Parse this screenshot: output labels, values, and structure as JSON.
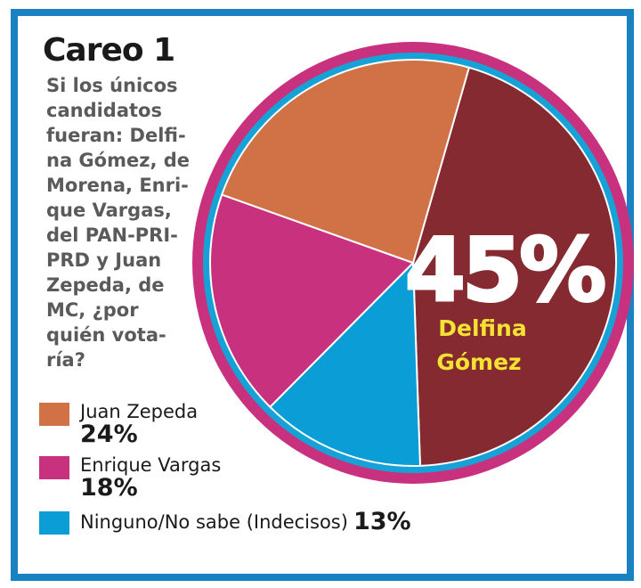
{
  "title": "Careo 1",
  "question_lines": [
    "Si los únicos",
    "candidatos",
    "fueran: Delfi-",
    "na Gómez, de",
    "Morena, Enri-",
    "que Vargas,",
    "del PAN-PRI-",
    "PRD y Juan",
    "Zepeda, de",
    "MC, ¿por",
    "quién vota-",
    "ría?"
  ],
  "colors": {
    "frame": "#1a82c3",
    "ring_outer": "#c8317e",
    "ring_inner": "#16a2d6"
  },
  "chart_data": {
    "type": "pie",
    "title": "Careo 1",
    "slices": [
      {
        "label": "Delfina Gómez",
        "value": 45,
        "display": "45%",
        "color": "#842a30"
      },
      {
        "label": "Ninguno/No sabe (Indecisos)",
        "value": 13,
        "display": "13%",
        "color": "#0b9ed6"
      },
      {
        "label": "Enrique Vargas",
        "value": 18,
        "display": "18%",
        "color": "#c8317e"
      },
      {
        "label": "Juan Zepeda",
        "value": 24,
        "display": "24%",
        "color": "#d07146"
      }
    ],
    "callout": {
      "value": "45%",
      "name_lines": [
        "Delfina",
        "Gómez"
      ],
      "name_color": "#f4e333"
    }
  },
  "legend": [
    {
      "name": "Juan Zepeda",
      "value": "24%",
      "color": "#d07146"
    },
    {
      "name": "Enrique Vargas",
      "value": "18%",
      "color": "#c8317e"
    },
    {
      "name": "Ninguno/No sabe (Indecisos)",
      "value": "13%",
      "color": "#0b9ed6"
    }
  ]
}
